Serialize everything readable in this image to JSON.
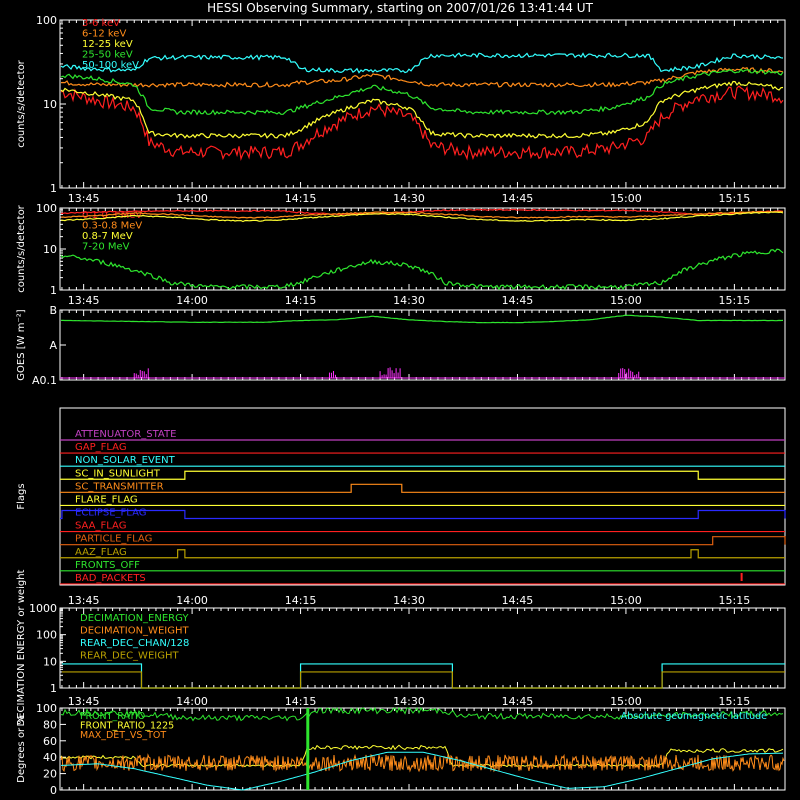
{
  "title": "HESSI Observing Summary, starting on 2007/01/26 13:41:44 UT",
  "colors": {
    "red": "#ff2020",
    "orange": "#ff8c1a",
    "yellow": "#ffff33",
    "green": "#2ee52e",
    "cyan": "#33ffff",
    "magenta": "#ff33ff",
    "blue": "#2a2aff",
    "olive": "#b8a000",
    "purple": "#c040c0",
    "darkorange": "#e06010"
  },
  "time_ticks": [
    "13:45",
    "14:00",
    "14:15",
    "14:30",
    "14:45",
    "15:00",
    "15:15"
  ],
  "chart_data": [
    {
      "type": "line",
      "panel": "lightcurve-low",
      "ylabel": "counts/s/detector",
      "ylim": [
        1,
        100
      ],
      "yscale": "log",
      "yticks": [
        "100",
        "10",
        "1"
      ],
      "x": [
        "13:42",
        "13:47",
        "13:52",
        "13:54",
        "13:58",
        "14:03",
        "14:08",
        "14:13",
        "14:15",
        "14:20",
        "14:25",
        "14:30",
        "14:33",
        "14:38",
        "14:43",
        "14:48",
        "14:53",
        "14:58",
        "15:03",
        "15:05",
        "15:10",
        "15:15",
        "15:20",
        "15:22"
      ],
      "series": [
        {
          "name": "3-6 keV",
          "color": "red",
          "values": [
            14,
            11,
            9,
            3.5,
            2.7,
            2.7,
            2.7,
            2.7,
            3.3,
            6,
            9,
            7,
            3.2,
            2.7,
            2.7,
            2.7,
            2.7,
            3,
            4,
            7,
            12,
            14,
            13,
            12
          ]
        },
        {
          "name": "6-12 keV",
          "color": "orange",
          "values": [
            18,
            17,
            17,
            17,
            17,
            17,
            17,
            17,
            18,
            19,
            22,
            19,
            17,
            17,
            17,
            17,
            17,
            17,
            18,
            19,
            24,
            26,
            25,
            24
          ]
        },
        {
          "name": "12-25 keV",
          "color": "yellow",
          "values": [
            15,
            13,
            11,
            4.5,
            4.2,
            4.2,
            4.2,
            4.2,
            5,
            8,
            11,
            9,
            4.5,
            4.2,
            4.2,
            4.2,
            4.2,
            4.5,
            6,
            11,
            15,
            18,
            16,
            15
          ]
        },
        {
          "name": "25-50 keV",
          "color": "green",
          "values": [
            22,
            20,
            17,
            9,
            8,
            8,
            8,
            8,
            9,
            12,
            16,
            13,
            9,
            8,
            8,
            8,
            8,
            9,
            12,
            17,
            22,
            25,
            24,
            23
          ]
        },
        {
          "name": "50-100 keV",
          "color": "cyan",
          "values": [
            28,
            26,
            25,
            35,
            36,
            36,
            36,
            36,
            26,
            25,
            25,
            25,
            38,
            38,
            38,
            38,
            38,
            38,
            38,
            25,
            28,
            38,
            36,
            34
          ]
        }
      ]
    },
    {
      "type": "line",
      "panel": "lightcurve-high",
      "ylabel": "counts/s/detector",
      "ylim": [
        1,
        100
      ],
      "yscale": "log",
      "yticks": [
        "100",
        "10",
        "1"
      ],
      "x": [
        "13:42",
        "13:47",
        "13:52",
        "13:57",
        "14:02",
        "14:07",
        "14:12",
        "14:15",
        "14:20",
        "14:25",
        "14:30",
        "14:35",
        "14:40",
        "14:45",
        "14:50",
        "14:55",
        "15:00",
        "15:05",
        "15:10",
        "15:15",
        "15:20",
        "15:22"
      ],
      "series": [
        {
          "name": "0.1-0.3 MeV",
          "color": "red",
          "values": [
            75,
            80,
            82,
            85,
            85,
            85,
            85,
            78,
            70,
            72,
            80,
            88,
            90,
            90,
            88,
            86,
            88,
            80,
            70,
            75,
            82,
            85
          ]
        },
        {
          "name": "0.3-0.8 MeV",
          "color": "orange",
          "values": [
            60,
            65,
            75,
            70,
            62,
            58,
            60,
            66,
            72,
            78,
            78,
            70,
            62,
            58,
            60,
            62,
            60,
            65,
            72,
            78,
            82,
            80
          ]
        },
        {
          "name": "0.8-7 MeV",
          "color": "yellow",
          "values": [
            50,
            55,
            65,
            60,
            52,
            48,
            50,
            56,
            64,
            72,
            70,
            60,
            52,
            48,
            50,
            52,
            50,
            55,
            64,
            72,
            78,
            76
          ]
        },
        {
          "name": "7-20 MeV",
          "color": "green",
          "values": [
            7,
            5,
            3,
            1.5,
            1.2,
            1.2,
            1.2,
            1.5,
            3,
            5,
            4,
            1.5,
            1.2,
            1.2,
            1.2,
            1.2,
            1.2,
            1.5,
            4,
            7,
            9,
            9
          ]
        }
      ]
    },
    {
      "type": "line",
      "panel": "goes",
      "ylabel": "GOES  [W m⁻²]",
      "yticks": [
        "B",
        "A",
        "A0.1"
      ],
      "ylim_log": [
        -9,
        -7
      ],
      "x": [
        "13:42",
        "13:50",
        "14:00",
        "14:10",
        "14:15",
        "14:20",
        "14:25",
        "14:30",
        "14:35",
        "14:40",
        "14:45",
        "14:50",
        "14:55",
        "15:00",
        "15:05",
        "15:10",
        "15:15",
        "15:22"
      ],
      "series": [
        {
          "name": "GOES",
          "color": "green",
          "values_log": [
            -7.3,
            -7.32,
            -7.35,
            -7.35,
            -7.3,
            -7.28,
            -7.18,
            -7.28,
            -7.33,
            -7.36,
            -7.36,
            -7.33,
            -7.28,
            -7.15,
            -7.2,
            -7.3,
            -7.3,
            -7.3
          ]
        }
      ]
    },
    {
      "type": "line",
      "panel": "flags",
      "ylabel": "Flags",
      "flags": [
        {
          "name": "ATTENUATOR_STATE",
          "color": "purple",
          "high": []
        },
        {
          "name": "GAP_FLAG",
          "color": "red",
          "high": []
        },
        {
          "name": "NON_SOLAR_EVENT",
          "color": "cyan",
          "high": []
        },
        {
          "name": "SC_IN_SUNLIGHT",
          "color": "yellow",
          "high": [
            [
              "13:59",
              "15:10"
            ]
          ]
        },
        {
          "name": "SC_TRANSMITTER",
          "color": "orange",
          "high": [
            [
              "14:22",
              "14:29"
            ]
          ]
        },
        {
          "name": "FLARE_FLAG",
          "color": "yellow",
          "high": []
        },
        {
          "name": "ECLIPSE_FLAG",
          "color": "blue",
          "high": [
            [
              "13:42",
              "13:59"
            ],
            [
              "15:10",
              "15:22"
            ]
          ]
        },
        {
          "name": "SAA_FLAG",
          "color": "red",
          "high": []
        },
        {
          "name": "PARTICLE_FLAG",
          "color": "darkorange",
          "high": [
            [
              "15:12",
              "15:22"
            ]
          ]
        },
        {
          "name": "AAZ_FLAG",
          "color": "olive",
          "high": [
            [
              "13:58",
              "13:59"
            ],
            [
              "15:09",
              "15:10"
            ]
          ]
        },
        {
          "name": "FRONTS_OFF",
          "color": "green",
          "high": []
        },
        {
          "name": "BAD_PACKETS",
          "color": "red",
          "high": []
        }
      ]
    },
    {
      "type": "line",
      "panel": "decimation",
      "ylabel": "DECIMATION ENERGY or weight",
      "ylim": [
        1,
        1000
      ],
      "yscale": "log",
      "yticks": [
        "1000",
        "100",
        "10",
        "1"
      ],
      "series": [
        {
          "name": "DECIMATION_ENERGY",
          "color": "green",
          "values": []
        },
        {
          "name": "DECIMATION_WEIGHT",
          "color": "orange",
          "values": []
        },
        {
          "name": "REAR_DEC_CHAN/128",
          "color": "cyan",
          "steps": [
            [
              "13:42",
              "13:53",
              8
            ],
            [
              "13:53",
              "14:15",
              1
            ],
            [
              "14:15",
              "14:36",
              8
            ],
            [
              "14:36",
              "15:05",
              1
            ],
            [
              "15:05",
              "15:22",
              8
            ]
          ]
        },
        {
          "name": "REAR_DEC_WEIGHT",
          "color": "olive",
          "steps": [
            [
              "13:42",
              "13:53",
              4
            ],
            [
              "13:53",
              "14:15",
              1
            ],
            [
              "14:15",
              "14:36",
              4
            ],
            [
              "14:36",
              "15:05",
              1
            ],
            [
              "15:05",
              "15:22",
              4
            ]
          ]
        }
      ]
    },
    {
      "type": "line",
      "panel": "ratios",
      "ylabel": "Degrees or %",
      "ylim": [
        0,
        100
      ],
      "yticks": [
        "100",
        "80",
        "60",
        "40",
        "20",
        "0"
      ],
      "annotation": "Absolute geomagnetic latitude",
      "series": [
        {
          "name": "FRONT_RATIO",
          "color": "green",
          "x": [
            "13:42",
            "13:50",
            "13:52",
            "14:00",
            "14:15",
            "14:17",
            "14:35",
            "14:37",
            "15:00",
            "15:20",
            "15:22"
          ],
          "values": [
            95,
            94,
            93,
            88,
            88,
            97,
            97,
            90,
            90,
            93,
            94
          ]
        },
        {
          "name": "FRONT_RATIO_1225",
          "color": "yellow",
          "x": [
            "13:42",
            "13:52",
            "13:53",
            "14:15",
            "14:16",
            "14:35",
            "14:36",
            "15:05",
            "15:06",
            "15:22"
          ],
          "values": [
            40,
            40,
            30,
            30,
            52,
            52,
            30,
            30,
            48,
            48
          ]
        },
        {
          "name": "MAX_DET_VS_TOT",
          "color": "orange",
          "x": [
            "13:42",
            "15:22"
          ],
          "values": [
            33,
            33
          ]
        },
        {
          "name": "Absolute geomagnetic latitude",
          "color": "cyan",
          "x": [
            "13:42",
            "13:47",
            "13:52",
            "13:57",
            "14:02",
            "14:07",
            "14:12",
            "14:17",
            "14:22",
            "14:27",
            "14:32",
            "14:37",
            "14:42",
            "14:47",
            "14:52",
            "14:57",
            "15:02",
            "15:07",
            "15:12",
            "15:17",
            "15:22"
          ],
          "values": [
            30,
            32,
            26,
            16,
            6,
            0,
            10,
            22,
            36,
            46,
            46,
            36,
            24,
            12,
            2,
            4,
            14,
            26,
            38,
            44,
            45
          ]
        }
      ]
    }
  ]
}
